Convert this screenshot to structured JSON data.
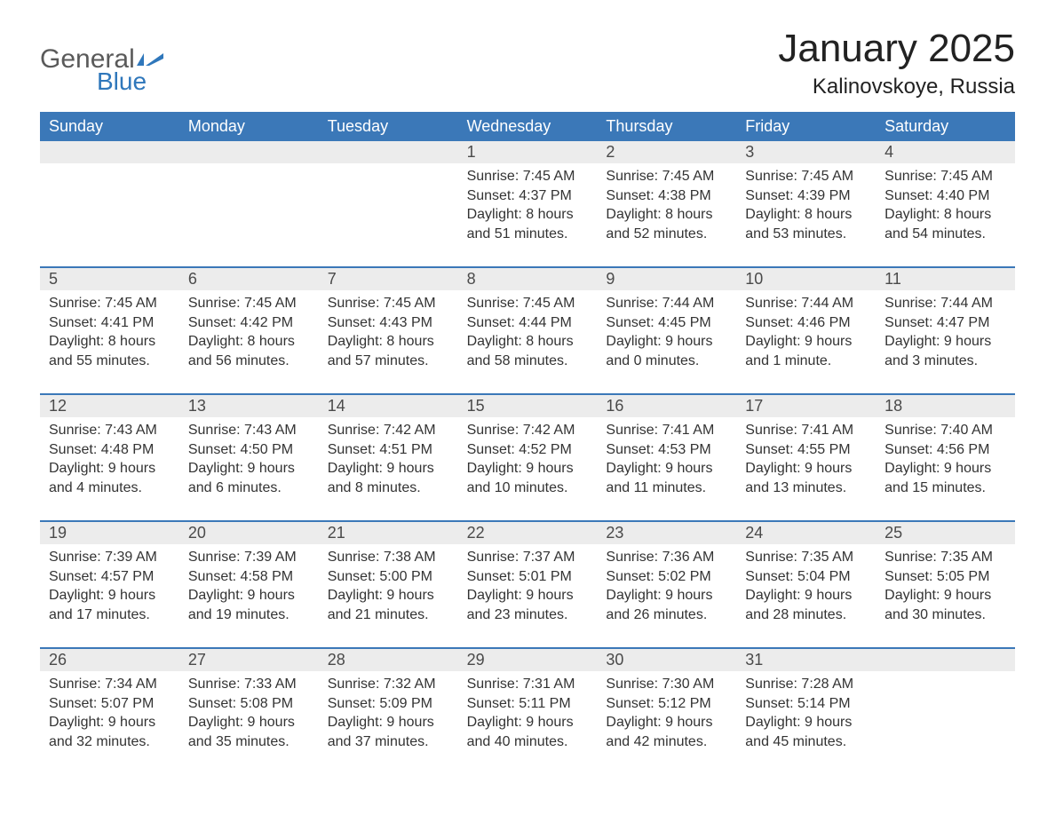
{
  "colors": {
    "header_bg": "#3b78b8",
    "header_text": "#ffffff",
    "daynum_bg": "#ececec",
    "daynum_text": "#4a4a4a",
    "body_text": "#333333",
    "rule": "#3b78b8",
    "logo_gray": "#5a5a5a",
    "logo_blue": "#2f77bb",
    "page_bg": "#ffffff"
  },
  "logo": {
    "text_top": "General",
    "text_bottom": "Blue"
  },
  "title": "January 2025",
  "subtitle": "Kalinovskoye, Russia",
  "day_headers": [
    "Sunday",
    "Monday",
    "Tuesday",
    "Wednesday",
    "Thursday",
    "Friday",
    "Saturday"
  ],
  "typography": {
    "title_fontsize": 44,
    "subtitle_fontsize": 24,
    "header_fontsize": 18,
    "daynum_fontsize": 18,
    "body_fontsize": 16
  },
  "weeks": [
    [
      {
        "num": "",
        "sunrise": "",
        "sunset": "",
        "daylight": ""
      },
      {
        "num": "",
        "sunrise": "",
        "sunset": "",
        "daylight": ""
      },
      {
        "num": "",
        "sunrise": "",
        "sunset": "",
        "daylight": ""
      },
      {
        "num": "1",
        "sunrise": "Sunrise: 7:45 AM",
        "sunset": "Sunset: 4:37 PM",
        "daylight": "Daylight: 8 hours and 51 minutes."
      },
      {
        "num": "2",
        "sunrise": "Sunrise: 7:45 AM",
        "sunset": "Sunset: 4:38 PM",
        "daylight": "Daylight: 8 hours and 52 minutes."
      },
      {
        "num": "3",
        "sunrise": "Sunrise: 7:45 AM",
        "sunset": "Sunset: 4:39 PM",
        "daylight": "Daylight: 8 hours and 53 minutes."
      },
      {
        "num": "4",
        "sunrise": "Sunrise: 7:45 AM",
        "sunset": "Sunset: 4:40 PM",
        "daylight": "Daylight: 8 hours and 54 minutes."
      }
    ],
    [
      {
        "num": "5",
        "sunrise": "Sunrise: 7:45 AM",
        "sunset": "Sunset: 4:41 PM",
        "daylight": "Daylight: 8 hours and 55 minutes."
      },
      {
        "num": "6",
        "sunrise": "Sunrise: 7:45 AM",
        "sunset": "Sunset: 4:42 PM",
        "daylight": "Daylight: 8 hours and 56 minutes."
      },
      {
        "num": "7",
        "sunrise": "Sunrise: 7:45 AM",
        "sunset": "Sunset: 4:43 PM",
        "daylight": "Daylight: 8 hours and 57 minutes."
      },
      {
        "num": "8",
        "sunrise": "Sunrise: 7:45 AM",
        "sunset": "Sunset: 4:44 PM",
        "daylight": "Daylight: 8 hours and 58 minutes."
      },
      {
        "num": "9",
        "sunrise": "Sunrise: 7:44 AM",
        "sunset": "Sunset: 4:45 PM",
        "daylight": "Daylight: 9 hours and 0 minutes."
      },
      {
        "num": "10",
        "sunrise": "Sunrise: 7:44 AM",
        "sunset": "Sunset: 4:46 PM",
        "daylight": "Daylight: 9 hours and 1 minute."
      },
      {
        "num": "11",
        "sunrise": "Sunrise: 7:44 AM",
        "sunset": "Sunset: 4:47 PM",
        "daylight": "Daylight: 9 hours and 3 minutes."
      }
    ],
    [
      {
        "num": "12",
        "sunrise": "Sunrise: 7:43 AM",
        "sunset": "Sunset: 4:48 PM",
        "daylight": "Daylight: 9 hours and 4 minutes."
      },
      {
        "num": "13",
        "sunrise": "Sunrise: 7:43 AM",
        "sunset": "Sunset: 4:50 PM",
        "daylight": "Daylight: 9 hours and 6 minutes."
      },
      {
        "num": "14",
        "sunrise": "Sunrise: 7:42 AM",
        "sunset": "Sunset: 4:51 PM",
        "daylight": "Daylight: 9 hours and 8 minutes."
      },
      {
        "num": "15",
        "sunrise": "Sunrise: 7:42 AM",
        "sunset": "Sunset: 4:52 PM",
        "daylight": "Daylight: 9 hours and 10 minutes."
      },
      {
        "num": "16",
        "sunrise": "Sunrise: 7:41 AM",
        "sunset": "Sunset: 4:53 PM",
        "daylight": "Daylight: 9 hours and 11 minutes."
      },
      {
        "num": "17",
        "sunrise": "Sunrise: 7:41 AM",
        "sunset": "Sunset: 4:55 PM",
        "daylight": "Daylight: 9 hours and 13 minutes."
      },
      {
        "num": "18",
        "sunrise": "Sunrise: 7:40 AM",
        "sunset": "Sunset: 4:56 PM",
        "daylight": "Daylight: 9 hours and 15 minutes."
      }
    ],
    [
      {
        "num": "19",
        "sunrise": "Sunrise: 7:39 AM",
        "sunset": "Sunset: 4:57 PM",
        "daylight": "Daylight: 9 hours and 17 minutes."
      },
      {
        "num": "20",
        "sunrise": "Sunrise: 7:39 AM",
        "sunset": "Sunset: 4:58 PM",
        "daylight": "Daylight: 9 hours and 19 minutes."
      },
      {
        "num": "21",
        "sunrise": "Sunrise: 7:38 AM",
        "sunset": "Sunset: 5:00 PM",
        "daylight": "Daylight: 9 hours and 21 minutes."
      },
      {
        "num": "22",
        "sunrise": "Sunrise: 7:37 AM",
        "sunset": "Sunset: 5:01 PM",
        "daylight": "Daylight: 9 hours and 23 minutes."
      },
      {
        "num": "23",
        "sunrise": "Sunrise: 7:36 AM",
        "sunset": "Sunset: 5:02 PM",
        "daylight": "Daylight: 9 hours and 26 minutes."
      },
      {
        "num": "24",
        "sunrise": "Sunrise: 7:35 AM",
        "sunset": "Sunset: 5:04 PM",
        "daylight": "Daylight: 9 hours and 28 minutes."
      },
      {
        "num": "25",
        "sunrise": "Sunrise: 7:35 AM",
        "sunset": "Sunset: 5:05 PM",
        "daylight": "Daylight: 9 hours and 30 minutes."
      }
    ],
    [
      {
        "num": "26",
        "sunrise": "Sunrise: 7:34 AM",
        "sunset": "Sunset: 5:07 PM",
        "daylight": "Daylight: 9 hours and 32 minutes."
      },
      {
        "num": "27",
        "sunrise": "Sunrise: 7:33 AM",
        "sunset": "Sunset: 5:08 PM",
        "daylight": "Daylight: 9 hours and 35 minutes."
      },
      {
        "num": "28",
        "sunrise": "Sunrise: 7:32 AM",
        "sunset": "Sunset: 5:09 PM",
        "daylight": "Daylight: 9 hours and 37 minutes."
      },
      {
        "num": "29",
        "sunrise": "Sunrise: 7:31 AM",
        "sunset": "Sunset: 5:11 PM",
        "daylight": "Daylight: 9 hours and 40 minutes."
      },
      {
        "num": "30",
        "sunrise": "Sunrise: 7:30 AM",
        "sunset": "Sunset: 5:12 PM",
        "daylight": "Daylight: 9 hours and 42 minutes."
      },
      {
        "num": "31",
        "sunrise": "Sunrise: 7:28 AM",
        "sunset": "Sunset: 5:14 PM",
        "daylight": "Daylight: 9 hours and 45 minutes."
      },
      {
        "num": "",
        "sunrise": "",
        "sunset": "",
        "daylight": ""
      }
    ]
  ]
}
